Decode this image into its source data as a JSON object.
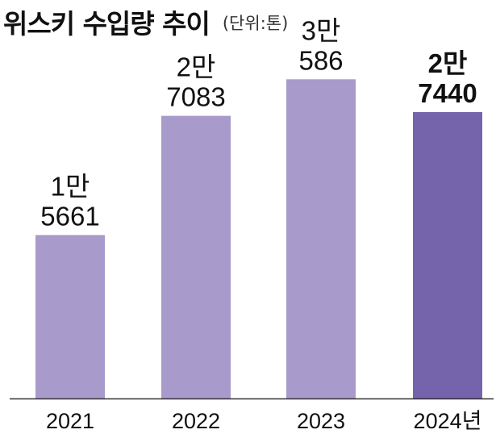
{
  "header": {
    "title": "위스키 수입량 추이",
    "unit": "(단위:톤)"
  },
  "chart_data": {
    "type": "bar",
    "title": "위스키 수입량 추이",
    "unit": "(단위:톤)",
    "categories": [
      "2021",
      "2022",
      "2023",
      "2024년"
    ],
    "values": [
      15661,
      27083,
      30586,
      27440
    ],
    "value_labels": [
      [
        "1만",
        "5661"
      ],
      [
        "2만",
        "7083"
      ],
      [
        "3만",
        "586"
      ],
      [
        "2만",
        "7440"
      ]
    ],
    "ylim": [
      0,
      32000
    ],
    "grid": false,
    "legend": "none",
    "highlight_index": 3,
    "colors": {
      "bar": "#a89acb",
      "highlight": "#7563ac",
      "axis": "#333333"
    }
  }
}
